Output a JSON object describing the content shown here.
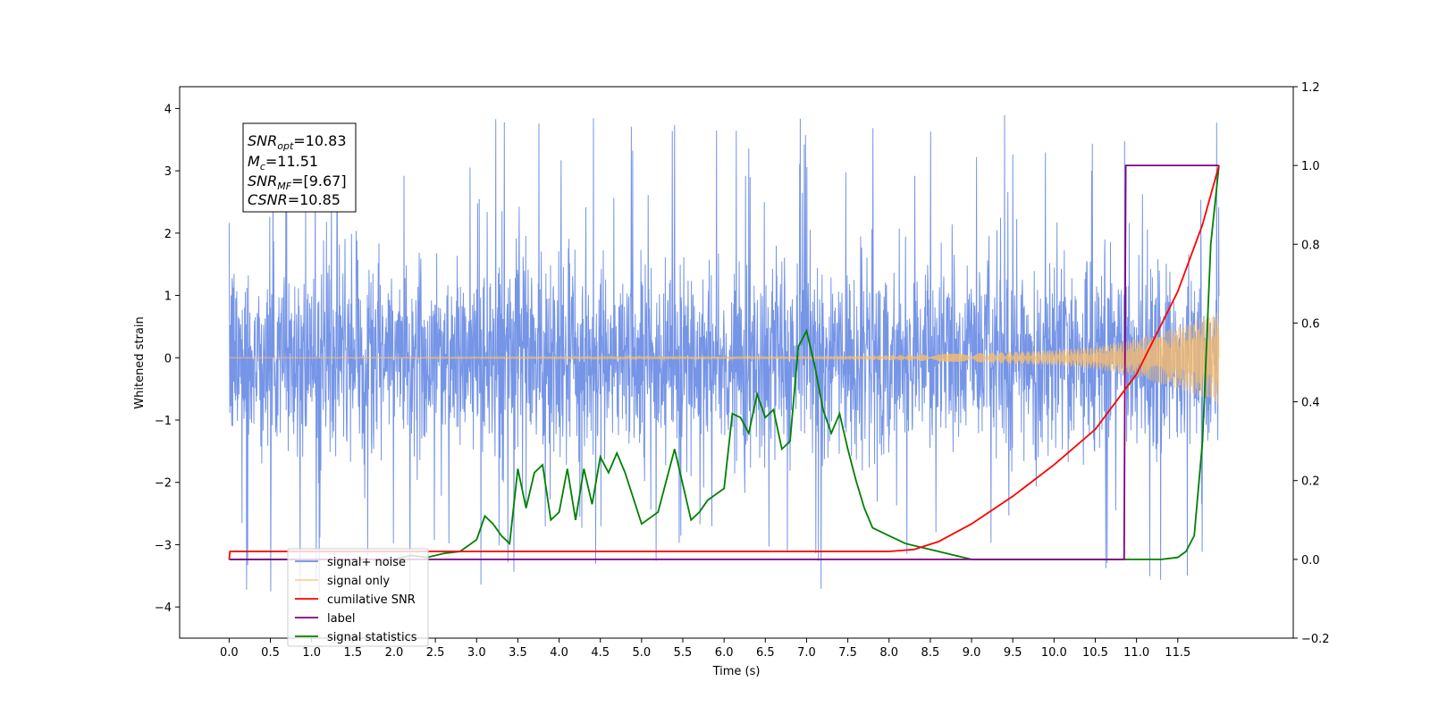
{
  "chart_data": {
    "type": "line",
    "title": "",
    "xlabel": "Time (s)",
    "ylabel": "Whitened strain",
    "y2label": "",
    "xlim": [
      -0.6,
      12.9
    ],
    "ylim": [
      -4.5,
      4.35
    ],
    "y2lim": [
      -0.2,
      1.2
    ],
    "x_ticks": [
      "0.0",
      "0.5",
      "1.0",
      "1.5",
      "2.0",
      "2.5",
      "3.0",
      "3.5",
      "4.0",
      "4.5",
      "5.0",
      "5.5",
      "6.0",
      "6.5",
      "7.0",
      "7.5",
      "8.0",
      "8.5",
      "9.0",
      "9.5",
      "10.0",
      "10.5",
      "11.0",
      "11.5"
    ],
    "y_ticks": [
      "4",
      "3",
      "2",
      "1",
      "0",
      "−1",
      "−2",
      "−3",
      "−4"
    ],
    "y2_ticks": [
      "1.2",
      "1.0",
      "0.8",
      "0.6",
      "0.4",
      "0.2",
      "0.0",
      "−0.2"
    ],
    "grid": false,
    "legend_position": "bottom-left",
    "stats_box": {
      "snr_opt": {
        "base": "SNR",
        "sub": "opt",
        "value": "=10.83"
      },
      "mc": {
        "base": "M",
        "sub": "c",
        "value": "=11.51"
      },
      "snr_mf": {
        "base": "SNR",
        "sub": "MF",
        "value": "=[9.67]"
      },
      "csnr": {
        "base": "CSNR",
        "sub": "",
        "value": "=10.85"
      }
    },
    "series": [
      {
        "name": "signal+ noise",
        "color": "#6f8fe6",
        "axis": "left",
        "description_range": {
          "t_start": 0.0,
          "t_end": 12.0,
          "y_min": -4.1,
          "y_max": 3.95,
          "typical_amplitude": 1.3
        }
      },
      {
        "name": "signal only",
        "color": "#ffbf66",
        "axis": "left",
        "envelope": {
          "t": [
            0.0,
            7.0,
            8.0,
            9.0,
            10.0,
            10.5,
            11.0,
            11.5,
            12.0
          ],
          "amp": [
            0.005,
            0.02,
            0.04,
            0.07,
            0.12,
            0.18,
            0.3,
            0.5,
            0.75
          ]
        }
      },
      {
        "name": "cumilative SNR",
        "color": "#ff0000",
        "axis": "right",
        "t": [
          0.0,
          0.01,
          8.0,
          8.3,
          8.6,
          9.0,
          9.5,
          10.0,
          10.5,
          11.0,
          11.5,
          11.8,
          12.0
        ],
        "values": [
          0.0,
          0.02,
          0.02,
          0.025,
          0.045,
          0.09,
          0.16,
          0.24,
          0.33,
          0.47,
          0.68,
          0.85,
          1.0
        ]
      },
      {
        "name": "label",
        "color": "#800080",
        "axis": "right",
        "t": [
          0.0,
          10.85,
          10.87,
          12.0
        ],
        "values": [
          0.0,
          0.0,
          1.0,
          1.0
        ]
      },
      {
        "name": "signal statistics",
        "color": "#008000",
        "axis": "right",
        "t": [
          0.0,
          2.0,
          2.2,
          2.4,
          2.6,
          2.8,
          3.0,
          3.1,
          3.2,
          3.3,
          3.4,
          3.5,
          3.6,
          3.7,
          3.8,
          3.9,
          4.0,
          4.1,
          4.2,
          4.3,
          4.4,
          4.5,
          4.6,
          4.7,
          4.8,
          5.0,
          5.2,
          5.4,
          5.5,
          5.6,
          5.7,
          5.8,
          6.0,
          6.1,
          6.2,
          6.3,
          6.4,
          6.5,
          6.6,
          6.7,
          6.8,
          6.9,
          7.0,
          7.1,
          7.2,
          7.3,
          7.4,
          7.5,
          7.6,
          7.7,
          7.8,
          8.0,
          8.2,
          8.4,
          8.6,
          8.8,
          9.0,
          11.3,
          11.5,
          11.6,
          11.7,
          11.8,
          11.9,
          12.0
        ],
        "values": [
          0.0,
          0.0,
          0.01,
          0.005,
          0.015,
          0.02,
          0.05,
          0.11,
          0.09,
          0.06,
          0.04,
          0.23,
          0.13,
          0.22,
          0.24,
          0.1,
          0.12,
          0.23,
          0.1,
          0.23,
          0.14,
          0.26,
          0.22,
          0.27,
          0.22,
          0.09,
          0.12,
          0.28,
          0.19,
          0.1,
          0.12,
          0.15,
          0.18,
          0.37,
          0.36,
          0.32,
          0.42,
          0.36,
          0.38,
          0.28,
          0.3,
          0.54,
          0.58,
          0.49,
          0.38,
          0.32,
          0.37,
          0.28,
          0.2,
          0.13,
          0.08,
          0.06,
          0.04,
          0.03,
          0.02,
          0.01,
          0.0,
          0.0,
          0.005,
          0.02,
          0.06,
          0.3,
          0.8,
          1.0
        ]
      }
    ]
  }
}
